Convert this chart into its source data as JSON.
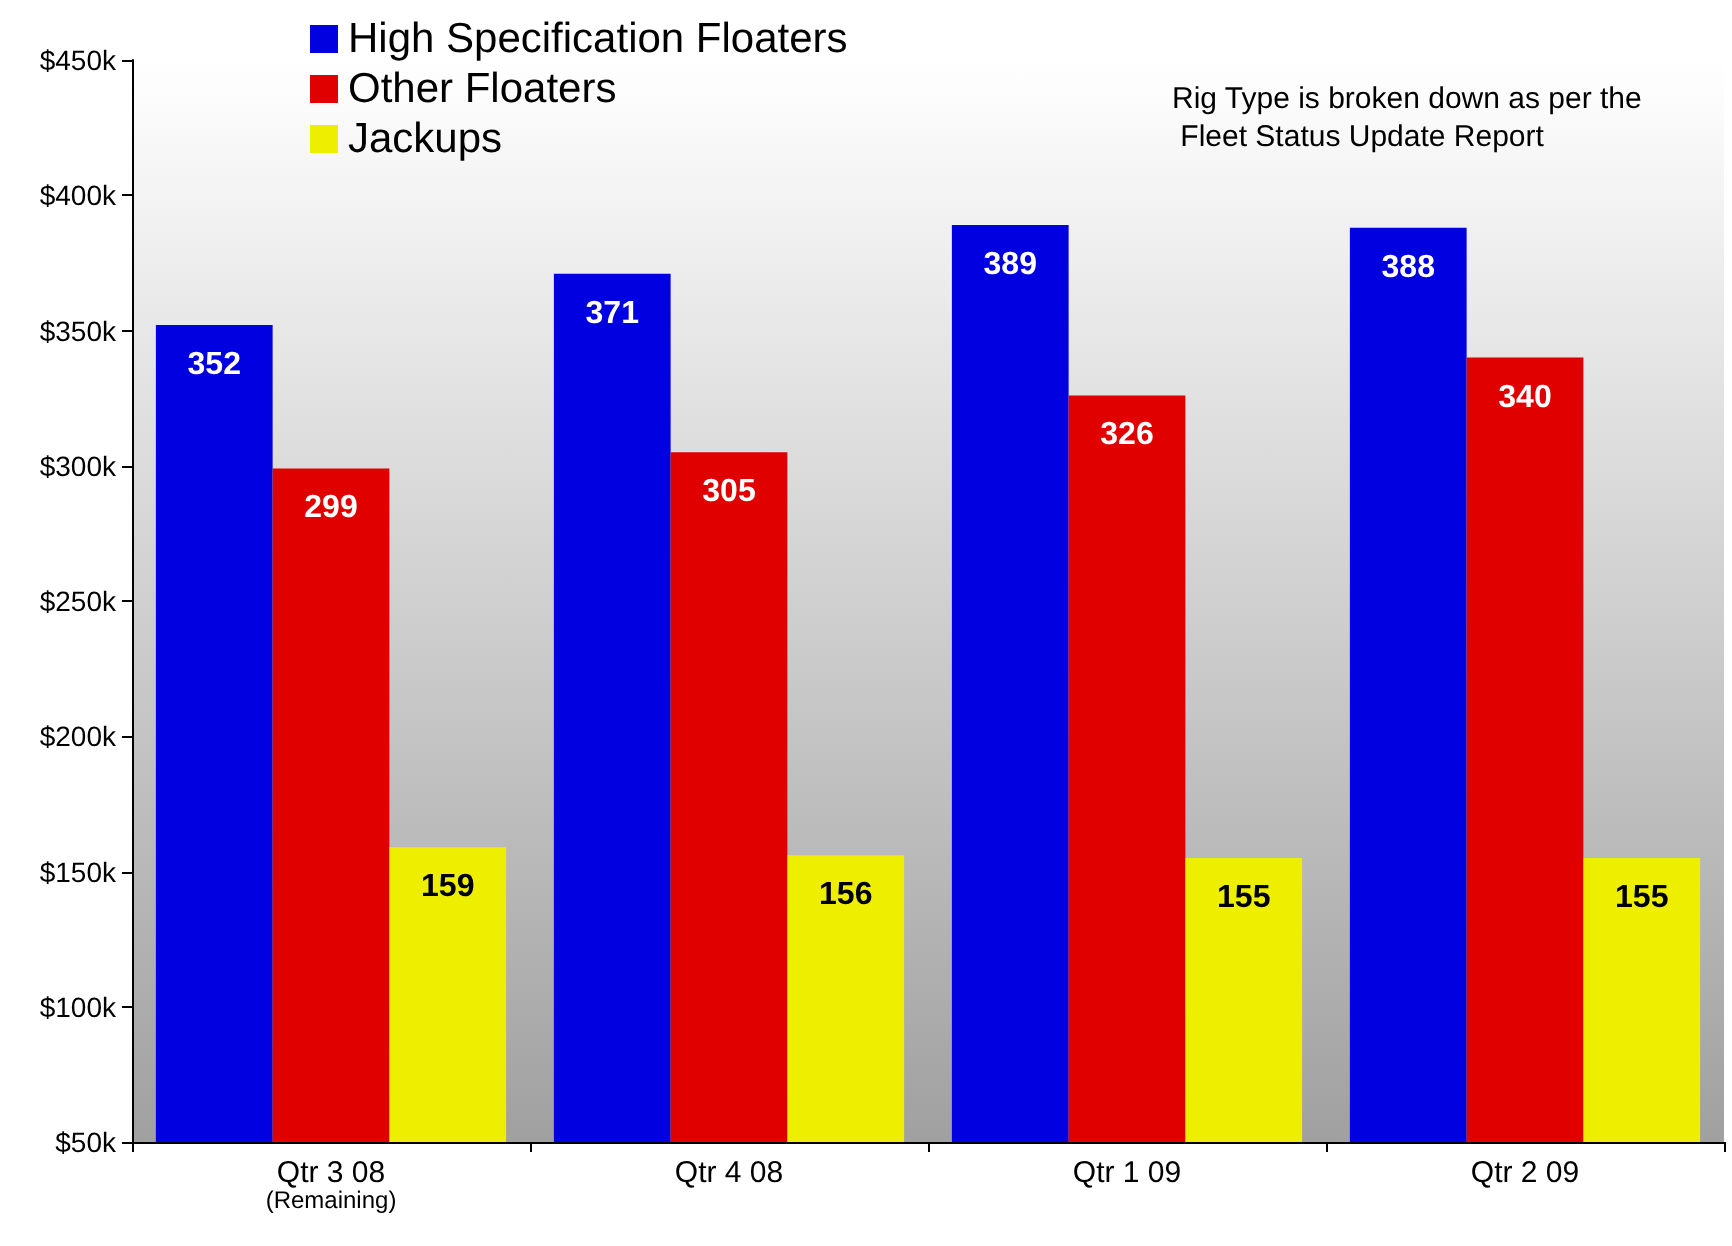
{
  "chart_data": {
    "type": "bar",
    "categories": [
      "Qtr 3 08\n(Remaining)",
      "Qtr 4 08",
      "Qtr 1 09",
      "Qtr 2 09"
    ],
    "series": [
      {
        "name": "High Specification Floaters",
        "color": "#0000e0",
        "values": [
          352,
          371,
          389,
          388
        ]
      },
      {
        "name": "Other Floaters",
        "color": "#e00000",
        "values": [
          299,
          305,
          326,
          340
        ]
      },
      {
        "name": "Jackups",
        "color": "#eeee00",
        "values": [
          159,
          156,
          155,
          155
        ]
      }
    ],
    "ylim": [
      50,
      450
    ],
    "yticks": [
      {
        "value": 50,
        "label": "$50k"
      },
      {
        "value": 100,
        "label": "$100k"
      },
      {
        "value": 150,
        "label": "$150k"
      },
      {
        "value": 200,
        "label": "$200k"
      },
      {
        "value": 250,
        "label": "$250k"
      },
      {
        "value": 300,
        "label": "$300k"
      },
      {
        "value": 350,
        "label": "$350k"
      },
      {
        "value": 400,
        "label": "$400k"
      },
      {
        "value": 450,
        "label": "$450k"
      }
    ],
    "data_labels": true,
    "grid": false,
    "legend": "top left",
    "annotations": [
      "Rig Type is broken down as per the Fleet Status Update Report"
    ]
  }
}
